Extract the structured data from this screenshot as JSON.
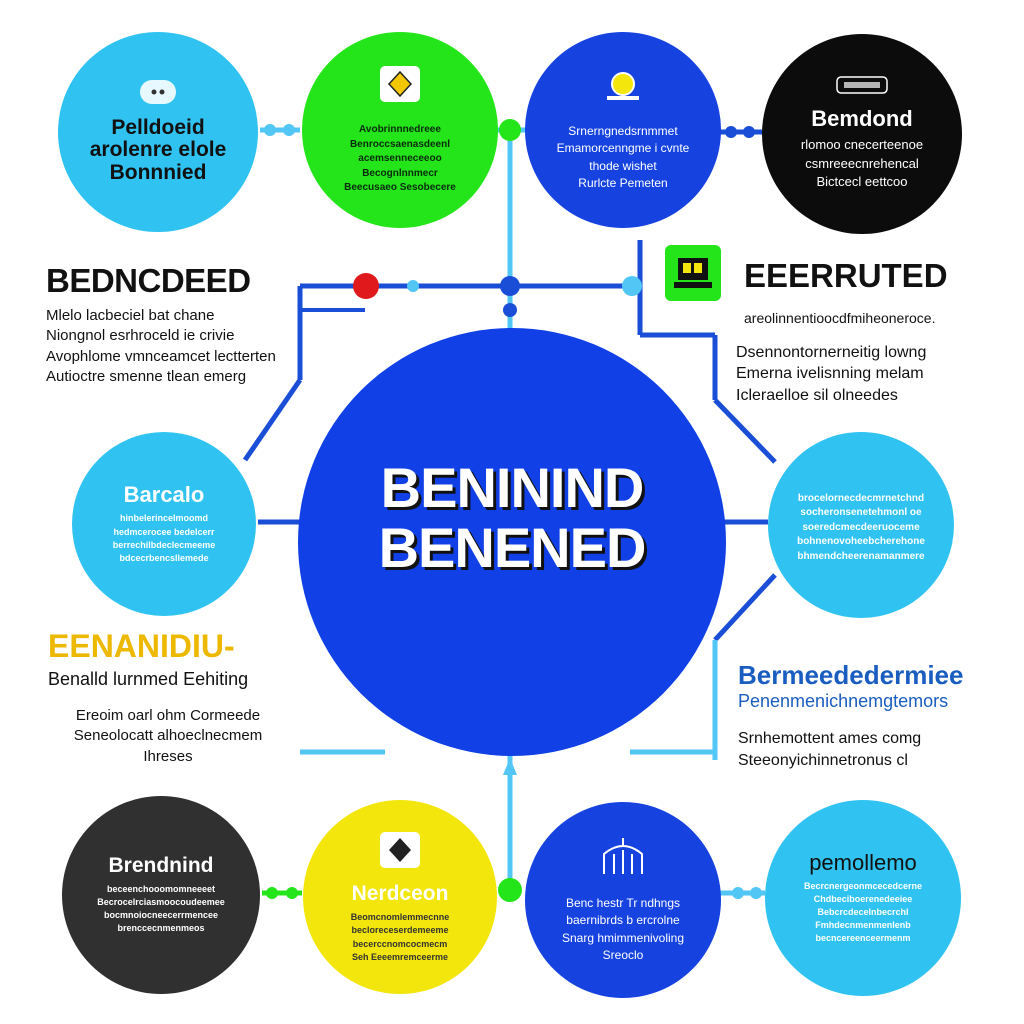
{
  "center": {
    "line1": "BENININD",
    "line2": "BENENED"
  },
  "nodes": {
    "top1": {
      "title": "Pelldoeid\narolenre elole\nBonnnied",
      "body": ""
    },
    "top2": {
      "title": "",
      "body": "Avobrinnnedreee\nBenroccsaenasdeenl\nacemsenneceeoo\nBecognlnnmecr\nBeecusaeo Sesobecere"
    },
    "top3": {
      "title": "",
      "body": "Srnerngnedsrnmmet\nEmamorcenngme i cvnte\nthode wishet\nRurlcte Pemeten"
    },
    "top4": {
      "title": "Bemdond",
      "body": "rlomoo cnecerteenoe\ncsmreeecnrehencal\nBictcecl eettcoo"
    },
    "mid_left": {
      "title": "Barcalo",
      "body": "hinbelerincelmoomd\nhedmcerocee bedelcerr\nberrechilbdeclecmeeme\nbdcecrbencsllemede"
    },
    "mid_right": {
      "title": "",
      "body": "brocelornecdecmrnetchnd\nsocheronsenetehmonl oe\nsoeredcmecdeeruoceme\nbohnenovoheebcherehone\nbhmendcheerenamanmere"
    },
    "bot1": {
      "title": "Brendnind",
      "body": "beceenchooomomneeeet\nBecrocelrciasmoocoudeemee\nbocmnoiocneecerrmencee\nbrenccecnmenmeos"
    },
    "bot2": {
      "title": "Nerdceon",
      "body": "Beomcnomlemmecnne\nbecloreceserdemeeme\nbecerccnomcocmecm\nSeh Eeeemremceerme"
    },
    "bot3": {
      "title": "",
      "body": "Benc hestr Tr ndhngs\nbaernibrds b ercrolne\nSnarg hmimmenivoling\nSreoclo"
    },
    "bot4": {
      "title": "pemollemo",
      "body": "Becrcnergeonmcecedcerne\nChdbeciboerenedeeiee\nBebcrcdecelnbecrchl\nFmhdecnmenmenlenb\nbecncereenceermenm"
    }
  },
  "sides": {
    "top_left": {
      "heading": "BEDNCDEED",
      "text": "Mlelo lacbeciel bat chane\nNiongnol esrhroceld ie crivie\nAvophlome vmnceamcet lectterten\nAutioctre smenne tlean emerg"
    },
    "top_right": {
      "heading": "EEERRUTED",
      "text": "areolinnentioocdfmiheoneroce.",
      "text2": "Dsennontornerneitig lowng\nEmerna ivelisnning melam\nIcleraelloe sil olneedes"
    },
    "bottom_left": {
      "heading": "EENANIDIU-",
      "subheading": "Benalld lurnmed Eehiting",
      "text": "Ereoim oarl ohm Cormeede\nSeneolocatt alhoeclnecmem\nIhreses"
    },
    "bottom_right": {
      "heading": "Bermeededermiee",
      "subheading": "Penenmenichnemgtemors",
      "text": "Srnhemottent ames comg\nSteeonyichinnetronus cl"
    }
  },
  "colors": {
    "hub": "#1040e6",
    "cyan": "#30c3f2",
    "green": "#24e51a",
    "blue": "#1642e0",
    "black": "#0c0c0c",
    "charcoal": "#303030",
    "yellow": "#f2e60c",
    "line_blue": "#1a4ed6",
    "line_cyan": "#52c6f5",
    "red": "#e0191c",
    "gold": "#ecb800",
    "heading_blue": "#1a5dc0"
  },
  "icons": [
    "dots-icon",
    "diamond-icon",
    "bulb-icon",
    "label-icon",
    "green-device-icon",
    "diamond-icon-dark",
    "building-icon"
  ]
}
